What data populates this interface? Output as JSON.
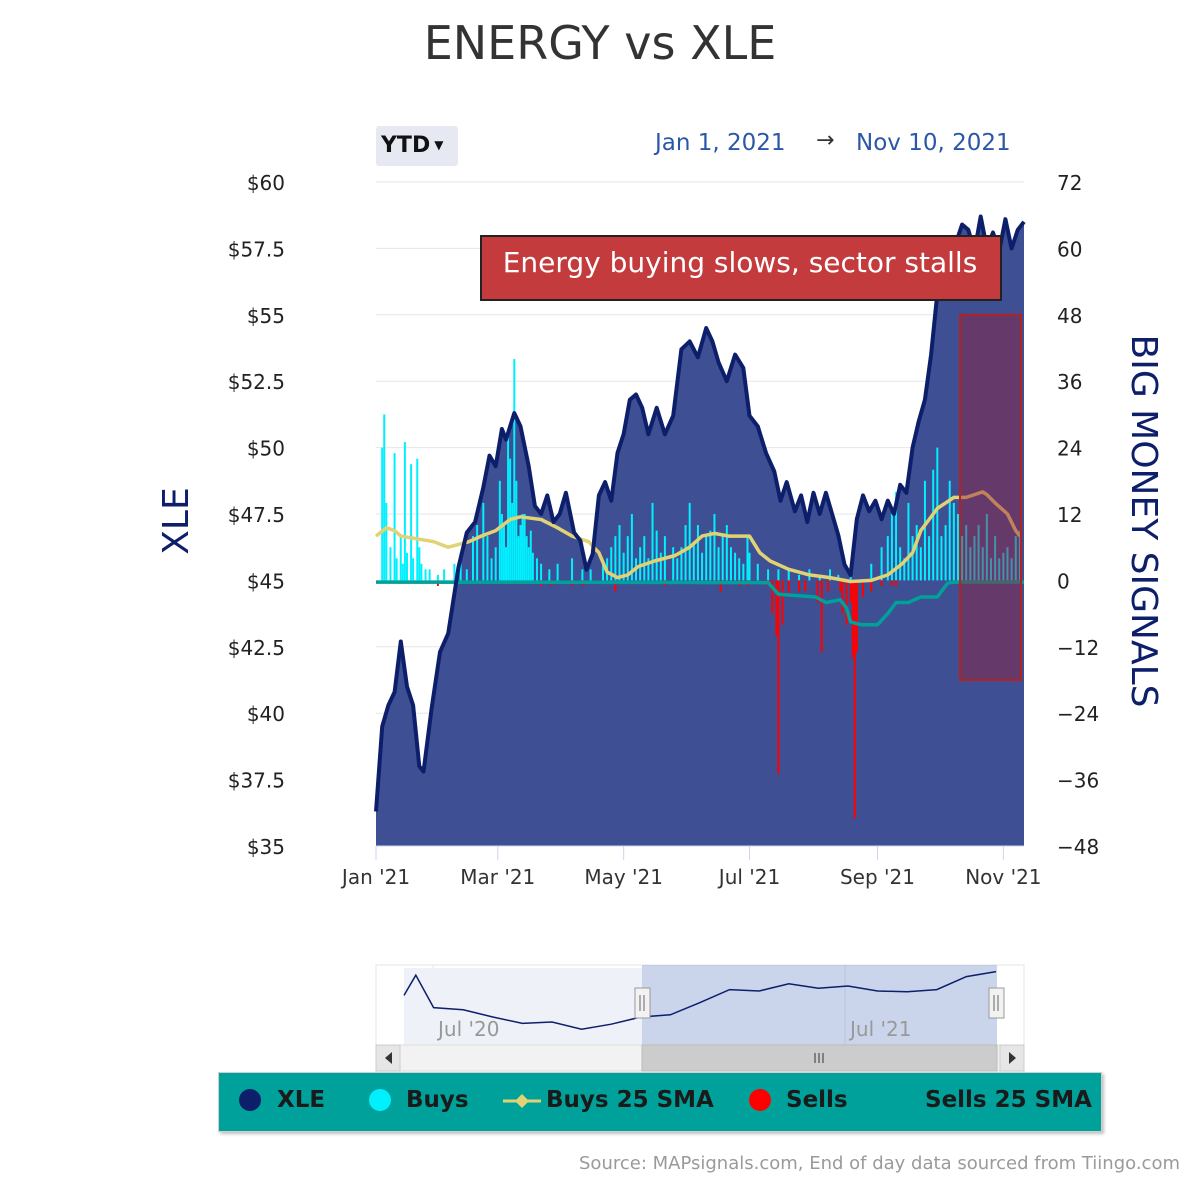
{
  "title": "ENERGY vs XLE",
  "range_selector": {
    "label": "YTD"
  },
  "date_range": {
    "from": "Jan 1, 2021",
    "arrow": "→",
    "to": "Nov 10, 2021"
  },
  "annotation": "Energy buying slows, sector stalls",
  "legend": [
    {
      "label": "XLE",
      "color": "#0d1f6b",
      "marker": "dot"
    },
    {
      "label": "Buys",
      "color": "#00f0ff",
      "marker": "dot"
    },
    {
      "label": "Buys 25 SMA",
      "color": "#e1d374",
      "marker": "line"
    },
    {
      "label": "Sells",
      "color": "#ff0000",
      "marker": "dot"
    },
    {
      "label": "Sells 25 SMA",
      "color": "#00a19a",
      "marker": "none"
    }
  ],
  "navigator": {
    "labels": [
      "Jul '20",
      "Jul '21"
    ]
  },
  "source": "Source: MAPsignals.com, End of day data sourced from Tiingo.com",
  "chart_data": {
    "type": "line",
    "title": "ENERGY vs XLE",
    "left_axis": {
      "label": "XLE",
      "min": 35,
      "max": 60,
      "tick_labels": [
        "$35",
        "$37.5",
        "$40",
        "$42.5",
        "$45",
        "$47.5",
        "$50",
        "$52.5",
        "$55",
        "$57.5",
        "$60"
      ],
      "tick_values": [
        35,
        37.5,
        40,
        42.5,
        45,
        47.5,
        50,
        52.5,
        55,
        57.5,
        60
      ]
    },
    "right_axis": {
      "label": "BIG MONEY SIGNALS",
      "min": -48,
      "max": 72,
      "tick_labels": [
        "-48",
        "-36",
        "-24",
        "-12",
        "0",
        "12",
        "24",
        "36",
        "48",
        "60",
        "72"
      ],
      "tick_values": [
        -48,
        -36,
        -24,
        -12,
        0,
        12,
        24,
        36,
        48,
        60,
        72
      ]
    },
    "x_axis": {
      "start_day": 0,
      "end_day": 314,
      "tick_labels": [
        "Jan '21",
        "Mar '21",
        "May '21",
        "Jul '21",
        "Sep '21",
        "Nov '21"
      ],
      "tick_days": [
        0,
        59,
        120,
        181,
        243,
        304
      ]
    },
    "xle": [
      [
        0,
        36.3
      ],
      [
        3,
        39.5
      ],
      [
        6,
        40.3
      ],
      [
        9,
        40.8
      ],
      [
        12,
        42.7
      ],
      [
        15,
        41
      ],
      [
        18,
        40.3
      ],
      [
        21,
        38
      ],
      [
        23,
        37.8
      ],
      [
        27,
        40.2
      ],
      [
        31,
        42.3
      ],
      [
        35,
        43
      ],
      [
        40,
        45.5
      ],
      [
        44,
        46.8
      ],
      [
        48,
        47.2
      ],
      [
        52,
        48.5
      ],
      [
        55,
        49.7
      ],
      [
        58,
        49.3
      ],
      [
        61,
        50.7
      ],
      [
        63,
        50.3
      ],
      [
        67,
        51.3
      ],
      [
        70,
        50.8
      ],
      [
        74,
        49.3
      ],
      [
        77,
        47.8
      ],
      [
        80,
        47.5
      ],
      [
        83,
        48.2
      ],
      [
        86,
        47.2
      ],
      [
        89,
        47.5
      ],
      [
        92,
        48.3
      ],
      [
        96,
        46.8
      ],
      [
        99,
        46.5
      ],
      [
        102,
        45.4
      ],
      [
        105,
        46
      ],
      [
        108,
        48.2
      ],
      [
        111,
        48.7
      ],
      [
        114,
        48
      ],
      [
        117,
        49.8
      ],
      [
        120,
        50.5
      ],
      [
        123,
        51.8
      ],
      [
        126,
        52
      ],
      [
        129,
        51.5
      ],
      [
        132,
        50.5
      ],
      [
        136,
        51.5
      ],
      [
        140,
        50.5
      ],
      [
        144,
        51.2
      ],
      [
        148,
        53.7
      ],
      [
        152,
        54
      ],
      [
        156,
        53.4
      ],
      [
        160,
        54.5
      ],
      [
        163,
        54
      ],
      [
        166,
        53.2
      ],
      [
        170,
        52.5
      ],
      [
        174,
        53.5
      ],
      [
        178,
        53
      ],
      [
        181,
        51.2
      ],
      [
        185,
        50.8
      ],
      [
        189,
        49.8
      ],
      [
        193,
        49.1
      ],
      [
        196,
        48
      ],
      [
        199,
        48.7
      ],
      [
        203,
        47.6
      ],
      [
        206,
        48.2
      ],
      [
        209,
        47.2
      ],
      [
        212,
        48.3
      ],
      [
        215,
        47.5
      ],
      [
        218,
        48.3
      ],
      [
        221,
        47.5
      ],
      [
        224,
        46.7
      ],
      [
        227,
        45.6
      ],
      [
        230,
        45.2
      ],
      [
        233,
        47.3
      ],
      [
        236,
        48.2
      ],
      [
        239,
        47.6
      ],
      [
        242,
        48
      ],
      [
        245,
        47.3
      ],
      [
        248,
        48
      ],
      [
        251,
        47.5
      ],
      [
        254,
        48.6
      ],
      [
        257,
        48.3
      ],
      [
        260,
        50
      ],
      [
        263,
        51
      ],
      [
        266,
        51.8
      ],
      [
        269,
        53.5
      ],
      [
        272,
        55.8
      ],
      [
        275,
        55.9
      ],
      [
        278,
        56.8
      ],
      [
        281,
        57.7
      ],
      [
        284,
        58.4
      ],
      [
        287,
        58.2
      ],
      [
        290,
        57.4
      ],
      [
        293,
        58.7
      ],
      [
        296,
        57.5
      ],
      [
        299,
        58.1
      ],
      [
        302,
        57.4
      ],
      [
        305,
        58.6
      ],
      [
        308,
        57.5
      ],
      [
        311,
        58.2
      ],
      [
        314,
        58.5
      ]
    ],
    "buys": [
      [
        3,
        24
      ],
      [
        4,
        30
      ],
      [
        5,
        14
      ],
      [
        7,
        6
      ],
      [
        9,
        23
      ],
      [
        10,
        4
      ],
      [
        12,
        8
      ],
      [
        13,
        3
      ],
      [
        14,
        25
      ],
      [
        15,
        5
      ],
      [
        17,
        21
      ],
      [
        18,
        4
      ],
      [
        20,
        22
      ],
      [
        21,
        6
      ],
      [
        22,
        3
      ],
      [
        24,
        2
      ],
      [
        26,
        2
      ],
      [
        30,
        1
      ],
      [
        33,
        2
      ],
      [
        38,
        3
      ],
      [
        41,
        5
      ],
      [
        44,
        2
      ],
      [
        47,
        8
      ],
      [
        49,
        10
      ],
      [
        52,
        14
      ],
      [
        54,
        8
      ],
      [
        56,
        4
      ],
      [
        58,
        6
      ],
      [
        60,
        18
      ],
      [
        61,
        12
      ],
      [
        62,
        10
      ],
      [
        63,
        6
      ],
      [
        64,
        26
      ],
      [
        65,
        22
      ],
      [
        66,
        14
      ],
      [
        67,
        40
      ],
      [
        68,
        18
      ],
      [
        69,
        8
      ],
      [
        70,
        10
      ],
      [
        71,
        12
      ],
      [
        72,
        12
      ],
      [
        73,
        8
      ],
      [
        74,
        6
      ],
      [
        75,
        9
      ],
      [
        76,
        5
      ],
      [
        78,
        4
      ],
      [
        80,
        3
      ],
      [
        84,
        2
      ],
      [
        88,
        3
      ],
      [
        95,
        4
      ],
      [
        100,
        2
      ],
      [
        104,
        2
      ],
      [
        110,
        3
      ],
      [
        112,
        4
      ],
      [
        114,
        6
      ],
      [
        116,
        8
      ],
      [
        118,
        10
      ],
      [
        120,
        5
      ],
      [
        122,
        8
      ],
      [
        124,
        12
      ],
      [
        126,
        4
      ],
      [
        128,
        6
      ],
      [
        130,
        8
      ],
      [
        132,
        4
      ],
      [
        134,
        14
      ],
      [
        136,
        9
      ],
      [
        138,
        5
      ],
      [
        140,
        8
      ],
      [
        144,
        6
      ],
      [
        146,
        4
      ],
      [
        148,
        6
      ],
      [
        150,
        10
      ],
      [
        152,
        14
      ],
      [
        154,
        7
      ],
      [
        156,
        10
      ],
      [
        158,
        5
      ],
      [
        160,
        8
      ],
      [
        162,
        9
      ],
      [
        164,
        12
      ],
      [
        166,
        6
      ],
      [
        168,
        8
      ],
      [
        170,
        10
      ],
      [
        172,
        6
      ],
      [
        174,
        5
      ],
      [
        176,
        4
      ],
      [
        178,
        3
      ],
      [
        180,
        8
      ],
      [
        181,
        5
      ],
      [
        185,
        3
      ],
      [
        190,
        2
      ],
      [
        195,
        2
      ],
      [
        200,
        2
      ],
      [
        205,
        1
      ],
      [
        210,
        2
      ],
      [
        215,
        1
      ],
      [
        220,
        2
      ],
      [
        224,
        1
      ],
      [
        230,
        2
      ],
      [
        240,
        3
      ],
      [
        245,
        6
      ],
      [
        248,
        8
      ],
      [
        250,
        12
      ],
      [
        252,
        16
      ],
      [
        254,
        6
      ],
      [
        256,
        4
      ],
      [
        258,
        14
      ],
      [
        260,
        8
      ],
      [
        262,
        10
      ],
      [
        264,
        6
      ],
      [
        266,
        18
      ],
      [
        268,
        8
      ],
      [
        270,
        20
      ],
      [
        272,
        24
      ],
      [
        274,
        8
      ],
      [
        276,
        10
      ],
      [
        278,
        18
      ],
      [
        280,
        14
      ],
      [
        282,
        12
      ],
      [
        284,
        8
      ],
      [
        286,
        10
      ],
      [
        288,
        6
      ],
      [
        290,
        8
      ],
      [
        292,
        10
      ],
      [
        294,
        6
      ],
      [
        296,
        12
      ],
      [
        298,
        4
      ],
      [
        300,
        8
      ],
      [
        302,
        4
      ],
      [
        304,
        5
      ],
      [
        306,
        6
      ],
      [
        308,
        4
      ],
      [
        310,
        8
      ],
      [
        312,
        9
      ]
    ],
    "sells": [
      [
        30,
        -1
      ],
      [
        80,
        -1
      ],
      [
        85,
        -1
      ],
      [
        95,
        -1
      ],
      [
        100,
        -1
      ],
      [
        116,
        -2
      ],
      [
        140,
        -1
      ],
      [
        167,
        -2
      ],
      [
        176,
        -1
      ],
      [
        180,
        -1
      ],
      [
        190,
        -1
      ],
      [
        192,
        -6
      ],
      [
        194,
        -10
      ],
      [
        195,
        -35
      ],
      [
        197,
        -8
      ],
      [
        200,
        -3
      ],
      [
        205,
        -2
      ],
      [
        208,
        -2
      ],
      [
        214,
        -4
      ],
      [
        216,
        -13
      ],
      [
        219,
        -2
      ],
      [
        225,
        -2
      ],
      [
        226,
        -6
      ],
      [
        228,
        -8
      ],
      [
        230,
        -4
      ],
      [
        231,
        -14
      ],
      [
        232,
        -43
      ],
      [
        233,
        -13
      ],
      [
        236,
        -3
      ],
      [
        240,
        -2
      ],
      [
        245,
        -1
      ],
      [
        250,
        -1
      ],
      [
        252,
        -1
      ]
    ],
    "buys_sma": [
      [
        0,
        8
      ],
      [
        5,
        9.5
      ],
      [
        9,
        9
      ],
      [
        12,
        8
      ],
      [
        20,
        7.5
      ],
      [
        28,
        7
      ],
      [
        35,
        6
      ],
      [
        45,
        7
      ],
      [
        51,
        8
      ],
      [
        58,
        9
      ],
      [
        65,
        11
      ],
      [
        70,
        11.5
      ],
      [
        80,
        11
      ],
      [
        88,
        9.5
      ],
      [
        95,
        8
      ],
      [
        103,
        7
      ],
      [
        108,
        5
      ],
      [
        112,
        1.5
      ],
      [
        117,
        0.5
      ],
      [
        122,
        1
      ],
      [
        127,
        2.5
      ],
      [
        135,
        3.5
      ],
      [
        145,
        4.5
      ],
      [
        152,
        6
      ],
      [
        158,
        8
      ],
      [
        164,
        8.5
      ],
      [
        171,
        8
      ],
      [
        181,
        8
      ],
      [
        186,
        5
      ],
      [
        191,
        3.5
      ],
      [
        200,
        2
      ],
      [
        210,
        1
      ],
      [
        220,
        0.5
      ],
      [
        230,
        -0.2
      ],
      [
        240,
        0
      ],
      [
        248,
        1
      ],
      [
        255,
        3
      ],
      [
        260,
        5
      ],
      [
        264,
        9
      ],
      [
        268,
        11
      ],
      [
        272,
        13
      ],
      [
        276,
        14
      ],
      [
        280,
        15
      ],
      [
        286,
        15
      ],
      [
        290,
        15.5
      ],
      [
        294,
        16
      ],
      [
        296,
        15.5
      ],
      [
        300,
        14
      ],
      [
        306,
        12
      ],
      [
        310,
        9
      ],
      [
        312,
        8
      ]
    ],
    "sells_sma": [
      [
        0,
        -0.3
      ],
      [
        190,
        -0.4
      ],
      [
        195,
        -2.5
      ],
      [
        213,
        -3
      ],
      [
        218,
        -4
      ],
      [
        225,
        -3.5
      ],
      [
        228,
        -5
      ],
      [
        230,
        -7.5
      ],
      [
        235,
        -8
      ],
      [
        243,
        -8
      ],
      [
        248,
        -6
      ],
      [
        252,
        -4
      ],
      [
        258,
        -4
      ],
      [
        264,
        -3
      ],
      [
        272,
        -3
      ],
      [
        277,
        -0.5
      ],
      [
        280,
        -0.3
      ],
      [
        314,
        -0.3
      ]
    ],
    "navigator_series": [
      [
        0,
        0.38
      ],
      [
        0.02,
        0.1
      ],
      [
        0.05,
        0.55
      ],
      [
        0.1,
        0.58
      ],
      [
        0.15,
        0.68
      ],
      [
        0.2,
        0.77
      ],
      [
        0.25,
        0.75
      ],
      [
        0.3,
        0.85
      ],
      [
        0.35,
        0.78
      ],
      [
        0.4,
        0.68
      ],
      [
        0.45,
        0.65
      ],
      [
        0.5,
        0.48
      ],
      [
        0.55,
        0.3
      ],
      [
        0.6,
        0.32
      ],
      [
        0.65,
        0.22
      ],
      [
        0.7,
        0.28
      ],
      [
        0.75,
        0.25
      ],
      [
        0.8,
        0.32
      ],
      [
        0.85,
        0.33
      ],
      [
        0.9,
        0.3
      ],
      [
        0.95,
        0.12
      ],
      [
        1,
        0.05
      ]
    ],
    "highlight_range": [
      283,
      314
    ]
  }
}
